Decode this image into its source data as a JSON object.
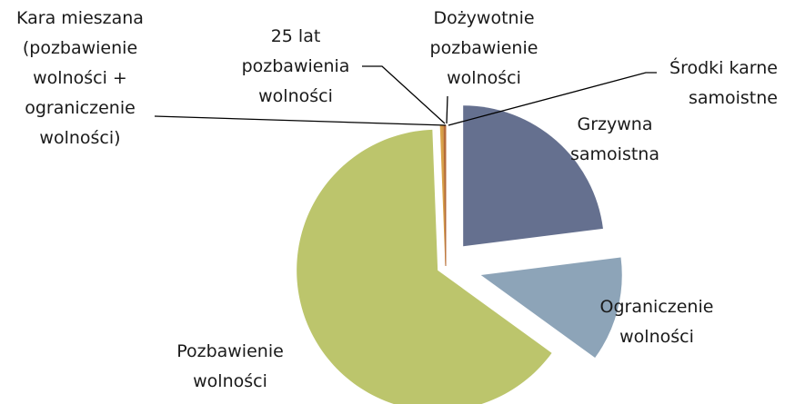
{
  "chart_data": {
    "type": "pie",
    "categories": [
      "Grzywna\nsamoistna",
      "Ograniczenie\nwolności",
      "Pozbawienie\nwolności",
      "Kara mieszana\n(pozbawienie\nwolności +\nograniczenie\nwolności)",
      "25 lat\npozbawienia\nwolności",
      "Dożywotnie\npozbawienie\nwolności",
      "Środki karne\nsamoistne"
    ],
    "values": [
      23,
      12,
      64.4,
      0.3,
      0.05,
      0.05,
      0.2
    ],
    "colors": [
      "#65708f",
      "#8da4b8",
      "#bcc56c",
      "#d9a24a",
      "#c98a3a",
      "#e0b060",
      "#b56b3a"
    ]
  }
}
